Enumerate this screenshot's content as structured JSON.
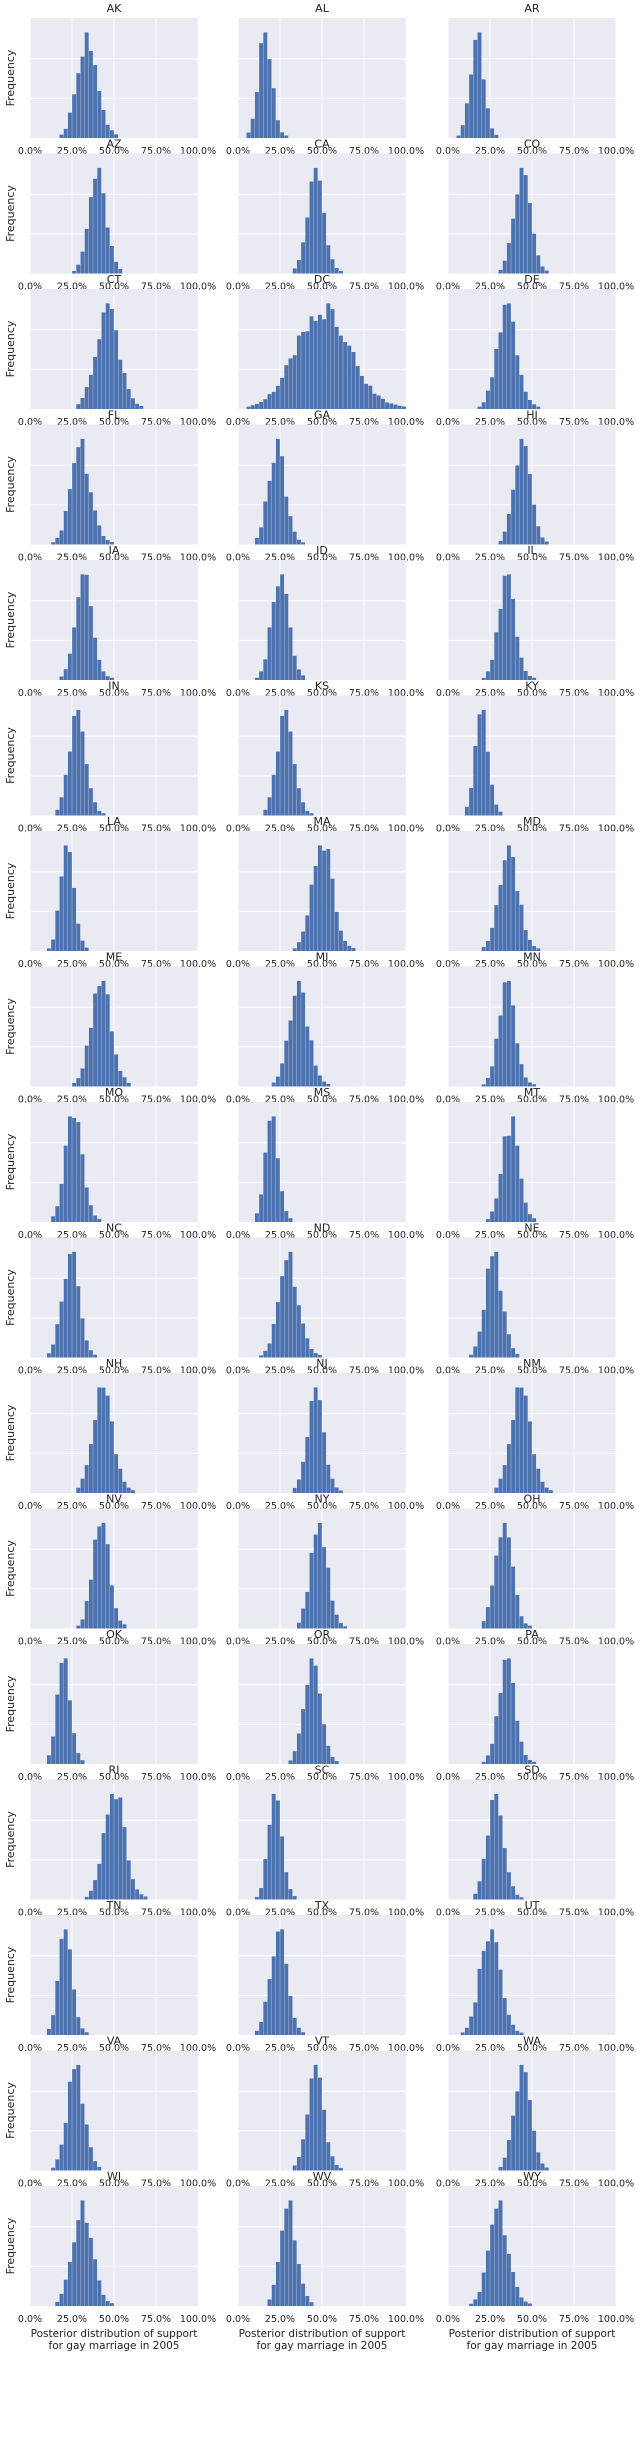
{
  "layout": {
    "rows": 17,
    "cols": 3
  },
  "style": {
    "background": "#ffffff",
    "axes_bg": "#eaeaf2",
    "grid": "#ffffff",
    "bar": "#4c72b0",
    "text": "#222222"
  },
  "common": {
    "type": "histogram",
    "xlim": [
      0,
      1
    ],
    "x_ticks": [
      "0.0%",
      "25.0%",
      "50.0%",
      "75.0%",
      "100.0%"
    ],
    "y_label": "Frequency",
    "x_label_lines": [
      "Posterior distribution of support",
      "for gay marriage in 2005"
    ],
    "grid": true,
    "bins": 40
  },
  "chart_data": [
    {
      "state": "AK",
      "type": "histogram",
      "center": 0.34,
      "sd": 0.06,
      "y_max": 1.0
    },
    {
      "state": "AL",
      "type": "histogram",
      "center": 0.16,
      "sd": 0.04,
      "y_max": 1.0
    },
    {
      "state": "AR",
      "type": "histogram",
      "center": 0.17,
      "sd": 0.04,
      "y_max": 1.0
    },
    {
      "state": "AZ",
      "type": "histogram",
      "center": 0.4,
      "sd": 0.05,
      "y_max": 1.0
    },
    {
      "state": "CA",
      "type": "histogram",
      "center": 0.46,
      "sd": 0.05,
      "y_max": 1.0
    },
    {
      "state": "CO",
      "type": "histogram",
      "center": 0.44,
      "sd": 0.05,
      "y_max": 1.0
    },
    {
      "state": "CT",
      "type": "histogram",
      "center": 0.46,
      "sd": 0.07,
      "y_max": 1.0
    },
    {
      "state": "DC",
      "type": "histogram",
      "center": 0.5,
      "sd": 0.16,
      "y_max": 1.0
    },
    {
      "state": "DE",
      "type": "histogram",
      "center": 0.35,
      "sd": 0.06,
      "y_max": 1.0
    },
    {
      "state": "FL",
      "type": "histogram",
      "center": 0.3,
      "sd": 0.06,
      "y_max": 1.0
    },
    {
      "state": "GA",
      "type": "histogram",
      "center": 0.23,
      "sd": 0.05,
      "y_max": 1.0
    },
    {
      "state": "HI",
      "type": "histogram",
      "center": 0.44,
      "sd": 0.05,
      "y_max": 1.0
    },
    {
      "state": "IA",
      "type": "histogram",
      "center": 0.32,
      "sd": 0.05,
      "y_max": 1.0
    },
    {
      "state": "ID",
      "type": "histogram",
      "center": 0.25,
      "sd": 0.05,
      "y_max": 1.0
    },
    {
      "state": "IL",
      "type": "histogram",
      "center": 0.35,
      "sd": 0.05,
      "y_max": 1.0
    },
    {
      "state": "IN",
      "type": "histogram",
      "center": 0.28,
      "sd": 0.05,
      "y_max": 1.0
    },
    {
      "state": "KS",
      "type": "histogram",
      "center": 0.28,
      "sd": 0.05,
      "y_max": 1.0
    },
    {
      "state": "KY",
      "type": "histogram",
      "center": 0.2,
      "sd": 0.04,
      "y_max": 1.0
    },
    {
      "state": "LA",
      "type": "histogram",
      "center": 0.22,
      "sd": 0.04,
      "y_max": 1.0
    },
    {
      "state": "MA",
      "type": "histogram",
      "center": 0.5,
      "sd": 0.06,
      "y_max": 1.0
    },
    {
      "state": "MD",
      "type": "histogram",
      "center": 0.36,
      "sd": 0.06,
      "y_max": 1.0
    },
    {
      "state": "ME",
      "type": "histogram",
      "center": 0.42,
      "sd": 0.06,
      "y_max": 1.0
    },
    {
      "state": "MI",
      "type": "histogram",
      "center": 0.36,
      "sd": 0.06,
      "y_max": 1.0
    },
    {
      "state": "MN",
      "type": "histogram",
      "center": 0.35,
      "sd": 0.05,
      "y_max": 1.0
    },
    {
      "state": "MO",
      "type": "histogram",
      "center": 0.26,
      "sd": 0.05,
      "y_max": 1.0
    },
    {
      "state": "MS",
      "type": "histogram",
      "center": 0.2,
      "sd": 0.04,
      "y_max": 1.0
    },
    {
      "state": "MT",
      "type": "histogram",
      "center": 0.37,
      "sd": 0.05,
      "y_max": 1.0
    },
    {
      "state": "NC",
      "type": "histogram",
      "center": 0.24,
      "sd": 0.05,
      "y_max": 1.0
    },
    {
      "state": "ND",
      "type": "histogram",
      "center": 0.3,
      "sd": 0.06,
      "y_max": 1.0
    },
    {
      "state": "NE",
      "type": "histogram",
      "center": 0.27,
      "sd": 0.05,
      "y_max": 1.0
    },
    {
      "state": "NH",
      "type": "histogram",
      "center": 0.43,
      "sd": 0.06,
      "y_max": 1.0
    },
    {
      "state": "NJ",
      "type": "histogram",
      "center": 0.46,
      "sd": 0.05,
      "y_max": 1.0
    },
    {
      "state": "NM",
      "type": "histogram",
      "center": 0.43,
      "sd": 0.06,
      "y_max": 1.0
    },
    {
      "state": "NV",
      "type": "histogram",
      "center": 0.42,
      "sd": 0.05,
      "y_max": 1.0
    },
    {
      "state": "NY",
      "type": "histogram",
      "center": 0.48,
      "sd": 0.05,
      "y_max": 1.0
    },
    {
      "state": "OH",
      "type": "histogram",
      "center": 0.33,
      "sd": 0.05,
      "y_max": 1.0
    },
    {
      "state": "OK",
      "type": "histogram",
      "center": 0.2,
      "sd": 0.04,
      "y_max": 1.0
    },
    {
      "state": "OR",
      "type": "histogram",
      "center": 0.44,
      "sd": 0.05,
      "y_max": 1.0
    },
    {
      "state": "PA",
      "type": "histogram",
      "center": 0.35,
      "sd": 0.05,
      "y_max": 1.0
    },
    {
      "state": "RI",
      "type": "histogram",
      "center": 0.5,
      "sd": 0.06,
      "y_max": 1.0
    },
    {
      "state": "SC",
      "type": "histogram",
      "center": 0.22,
      "sd": 0.04,
      "y_max": 1.0
    },
    {
      "state": "SD",
      "type": "histogram",
      "center": 0.28,
      "sd": 0.05,
      "y_max": 1.0
    },
    {
      "state": "TN",
      "type": "histogram",
      "center": 0.21,
      "sd": 0.04,
      "y_max": 1.0
    },
    {
      "state": "TX",
      "type": "histogram",
      "center": 0.24,
      "sd": 0.05,
      "y_max": 1.0
    },
    {
      "state": "UT",
      "type": "histogram",
      "center": 0.25,
      "sd": 0.06,
      "y_max": 1.0
    },
    {
      "state": "VA",
      "type": "histogram",
      "center": 0.27,
      "sd": 0.05,
      "y_max": 1.0
    },
    {
      "state": "VT",
      "type": "histogram",
      "center": 0.46,
      "sd": 0.05,
      "y_max": 1.0
    },
    {
      "state": "WA",
      "type": "histogram",
      "center": 0.44,
      "sd": 0.05,
      "y_max": 1.0
    },
    {
      "state": "WI",
      "type": "histogram",
      "center": 0.31,
      "sd": 0.06,
      "y_max": 1.0
    },
    {
      "state": "WV",
      "type": "histogram",
      "center": 0.3,
      "sd": 0.05,
      "y_max": 1.0
    },
    {
      "state": "WY",
      "type": "histogram",
      "center": 0.3,
      "sd": 0.06,
      "y_max": 1.0
    }
  ]
}
